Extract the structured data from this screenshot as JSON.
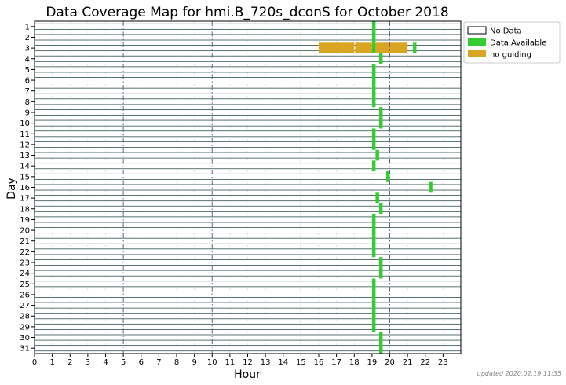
{
  "chart_data": {
    "type": "bar",
    "title": "Data Coverage Map for hmi.B_720s_dconS for October 2018",
    "xlabel": "Hour",
    "ylabel": "Day",
    "xlim": [
      0,
      24
    ],
    "x_ticks": [
      "0",
      "1",
      "2",
      "3",
      "4",
      "5",
      "6",
      "7",
      "8",
      "9",
      "10",
      "11",
      "12",
      "13",
      "14",
      "15",
      "16",
      "17",
      "18",
      "19",
      "20",
      "21",
      "22",
      "23"
    ],
    "major_hour_lines": [
      5,
      10,
      15,
      20
    ],
    "y_ticks": [
      "1",
      "2",
      "3",
      "4",
      "5",
      "6",
      "7",
      "8",
      "9",
      "10",
      "11",
      "12",
      "13",
      "14",
      "15",
      "16",
      "17",
      "18",
      "19",
      "20",
      "21",
      "22",
      "23",
      "24",
      "25",
      "26",
      "27",
      "28",
      "29",
      "30",
      "31"
    ],
    "legend": {
      "placement": "right-top",
      "entries": [
        {
          "label": "No Data",
          "color": "#ffffff"
        },
        {
          "label": "Data Available",
          "color": "#33cc33"
        },
        {
          "label": "no guiding",
          "color": "#daa520"
        }
      ]
    },
    "colors": {
      "no_data": "#ffffff",
      "data_available": "#33cc33",
      "no_guiding": "#daa520",
      "row_line": "#2f4f4f"
    },
    "series": [
      {
        "name": "Data Available",
        "segments": [
          {
            "day": 1,
            "start": 19.0,
            "end": 19.2
          },
          {
            "day": 2,
            "start": 19.0,
            "end": 19.2
          },
          {
            "day": 3,
            "start": 19.0,
            "end": 19.2
          },
          {
            "day": 3,
            "start": 21.3,
            "end": 21.5
          },
          {
            "day": 4,
            "start": 19.4,
            "end": 19.6
          },
          {
            "day": 5,
            "start": 19.0,
            "end": 19.2
          },
          {
            "day": 6,
            "start": 19.0,
            "end": 19.2
          },
          {
            "day": 7,
            "start": 19.0,
            "end": 19.2
          },
          {
            "day": 8,
            "start": 19.0,
            "end": 19.2
          },
          {
            "day": 9,
            "start": 19.4,
            "end": 19.6
          },
          {
            "day": 10,
            "start": 19.4,
            "end": 19.6
          },
          {
            "day": 11,
            "start": 19.0,
            "end": 19.2
          },
          {
            "day": 12,
            "start": 19.0,
            "end": 19.2
          },
          {
            "day": 13,
            "start": 19.2,
            "end": 19.4
          },
          {
            "day": 14,
            "start": 19.0,
            "end": 19.2
          },
          {
            "day": 15,
            "start": 19.8,
            "end": 20.0
          },
          {
            "day": 16,
            "start": 22.2,
            "end": 22.4
          },
          {
            "day": 17,
            "start": 19.2,
            "end": 19.4
          },
          {
            "day": 18,
            "start": 19.4,
            "end": 19.6
          },
          {
            "day": 19,
            "start": 19.0,
            "end": 19.2
          },
          {
            "day": 20,
            "start": 19.0,
            "end": 19.2
          },
          {
            "day": 21,
            "start": 19.0,
            "end": 19.2
          },
          {
            "day": 22,
            "start": 19.0,
            "end": 19.2
          },
          {
            "day": 23,
            "start": 19.4,
            "end": 19.6
          },
          {
            "day": 24,
            "start": 19.4,
            "end": 19.6
          },
          {
            "day": 25,
            "start": 19.0,
            "end": 19.2
          },
          {
            "day": 26,
            "start": 19.0,
            "end": 19.2
          },
          {
            "day": 27,
            "start": 19.0,
            "end": 19.2
          },
          {
            "day": 28,
            "start": 19.0,
            "end": 19.2
          },
          {
            "day": 29,
            "start": 19.0,
            "end": 19.2
          },
          {
            "day": 30,
            "start": 19.4,
            "end": 19.6
          },
          {
            "day": 31,
            "start": 19.4,
            "end": 19.6
          }
        ]
      },
      {
        "name": "no guiding",
        "segments": [
          {
            "day": 3,
            "start": 16.0,
            "end": 18.0
          },
          {
            "day": 3,
            "start": 18.05,
            "end": 19.0
          },
          {
            "day": 3,
            "start": 19.2,
            "end": 21.0
          }
        ]
      }
    ]
  },
  "footer": {
    "updated": "updated 2020.02.19 11:35"
  }
}
